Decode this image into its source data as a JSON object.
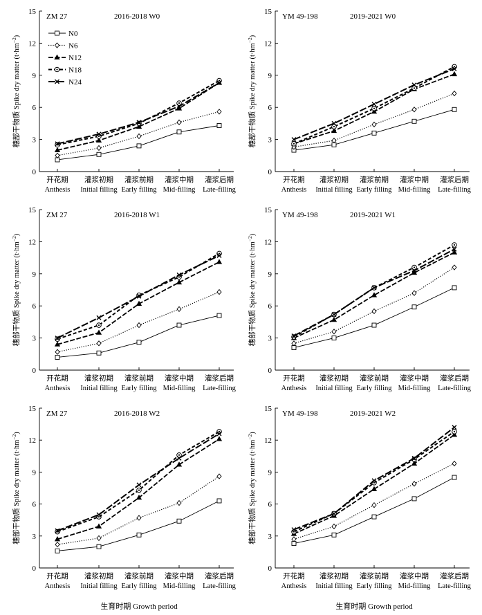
{
  "ylabel": "穗部干物质 Spike dry matter (t·hm",
  "ylabel_sup": "−2",
  "ylabel_end": ")",
  "xlabel": "生育时期 Growth period",
  "categories_cn": [
    "开花期",
    "灌浆初期",
    "灌浆前期",
    "灌浆中期",
    "灌浆后期"
  ],
  "categories_en": [
    "Anthesis",
    "Initial filling",
    "Early filling",
    "Mid-filling",
    "Late-filling"
  ],
  "legend": {
    "entries": [
      "N0",
      "N6",
      "N12",
      "N18",
      "N24"
    ],
    "placement": "top-left, first panel"
  },
  "chart_data": [
    {
      "type": "line",
      "panel": "ZM 27 2016-2018 W0",
      "variety": "ZM 27",
      "period": "2016-2018",
      "water": "W0",
      "ylim": [
        0,
        15
      ],
      "yticks": [
        0,
        3,
        6,
        9,
        12,
        15
      ],
      "series": [
        {
          "name": "N0",
          "values": [
            1.1,
            1.6,
            2.4,
            3.7,
            4.3
          ]
        },
        {
          "name": "N6",
          "values": [
            1.5,
            2.2,
            3.3,
            4.6,
            5.6
          ]
        },
        {
          "name": "N12",
          "values": [
            2.0,
            2.9,
            4.2,
            5.9,
            8.3
          ]
        },
        {
          "name": "N18",
          "values": [
            2.5,
            3.3,
            4.5,
            6.4,
            8.5
          ]
        },
        {
          "name": "N24",
          "values": [
            2.6,
            3.5,
            4.6,
            6.1,
            8.3
          ]
        }
      ]
    },
    {
      "type": "line",
      "panel": "YM 49-198 2019-2021 W0",
      "variety": "YM 49-198",
      "period": "2019-2021",
      "water": "W0",
      "ylim": [
        0,
        15
      ],
      "yticks": [
        0,
        3,
        6,
        9,
        12,
        15
      ],
      "series": [
        {
          "name": "N0",
          "values": [
            2.0,
            2.5,
            3.6,
            4.7,
            5.8
          ]
        },
        {
          "name": "N6",
          "values": [
            2.3,
            2.9,
            4.4,
            5.8,
            7.3
          ]
        },
        {
          "name": "N12",
          "values": [
            2.6,
            3.8,
            5.6,
            7.7,
            9.1
          ]
        },
        {
          "name": "N18",
          "values": [
            2.6,
            4.2,
            5.9,
            7.8,
            9.8
          ]
        },
        {
          "name": "N24",
          "values": [
            3.0,
            4.5,
            6.3,
            8.1,
            9.6
          ]
        }
      ]
    },
    {
      "type": "line",
      "panel": "ZM 27 2016-2018 W1",
      "variety": "ZM 27",
      "period": "2016-2018",
      "water": "W1",
      "ylim": [
        0,
        15
      ],
      "yticks": [
        0,
        3,
        6,
        9,
        12,
        15
      ],
      "series": [
        {
          "name": "N0",
          "values": [
            1.2,
            1.6,
            2.6,
            4.2,
            5.1
          ]
        },
        {
          "name": "N6",
          "values": [
            1.7,
            2.5,
            4.2,
            5.7,
            7.3
          ]
        },
        {
          "name": "N12",
          "values": [
            2.4,
            3.5,
            6.2,
            8.2,
            10.1
          ]
        },
        {
          "name": "N18",
          "values": [
            2.9,
            4.2,
            7.0,
            8.7,
            10.9
          ]
        },
        {
          "name": "N24",
          "values": [
            3.0,
            4.9,
            6.9,
            8.9,
            10.7
          ]
        }
      ]
    },
    {
      "type": "line",
      "panel": "YM 49-198 2019-2021 W1",
      "variety": "YM 49-198",
      "period": "2019-2021",
      "water": "W1",
      "ylim": [
        0,
        15
      ],
      "yticks": [
        0,
        3,
        6,
        9,
        12,
        15
      ],
      "series": [
        {
          "name": "N0",
          "values": [
            2.1,
            3.0,
            4.2,
            5.9,
            7.7
          ]
        },
        {
          "name": "N6",
          "values": [
            2.5,
            3.6,
            5.5,
            7.2,
            9.6
          ]
        },
        {
          "name": "N12",
          "values": [
            3.0,
            4.7,
            7.0,
            9.1,
            11.0
          ]
        },
        {
          "name": "N18",
          "values": [
            3.1,
            5.2,
            7.7,
            9.6,
            11.7
          ]
        },
        {
          "name": "N24",
          "values": [
            3.2,
            5.2,
            7.7,
            9.3,
            11.3
          ]
        }
      ]
    },
    {
      "type": "line",
      "panel": "ZM 27 2016-2018 W2",
      "variety": "ZM 27",
      "period": "2016-2018",
      "water": "W2",
      "ylim": [
        0,
        15
      ],
      "yticks": [
        0,
        3,
        6,
        9,
        12,
        15
      ],
      "series": [
        {
          "name": "N0",
          "values": [
            1.6,
            2.0,
            3.1,
            4.4,
            6.3
          ]
        },
        {
          "name": "N6",
          "values": [
            2.2,
            2.8,
            4.7,
            6.1,
            8.6
          ]
        },
        {
          "name": "N12",
          "values": [
            2.7,
            3.9,
            6.6,
            9.7,
            12.1
          ]
        },
        {
          "name": "N18",
          "values": [
            3.4,
            4.8,
            7.3,
            10.6,
            12.8
          ]
        },
        {
          "name": "N24",
          "values": [
            3.5,
            5.0,
            7.8,
            10.3,
            12.6
          ]
        }
      ]
    },
    {
      "type": "line",
      "panel": "YM 49-198 2019-2021 W2",
      "variety": "YM 49-198",
      "period": "2019-2021",
      "water": "W2",
      "ylim": [
        0,
        15
      ],
      "yticks": [
        0,
        3,
        6,
        9,
        12,
        15
      ],
      "series": [
        {
          "name": "N0",
          "values": [
            2.3,
            3.1,
            4.8,
            6.5,
            8.5
          ]
        },
        {
          "name": "N6",
          "values": [
            2.7,
            3.9,
            5.9,
            7.9,
            9.8
          ]
        },
        {
          "name": "N12",
          "values": [
            3.2,
            4.9,
            7.4,
            9.8,
            12.5
          ]
        },
        {
          "name": "N18",
          "values": [
            3.4,
            5.1,
            8.0,
            10.2,
            12.8
          ]
        },
        {
          "name": "N24",
          "values": [
            3.6,
            5.1,
            8.2,
            10.3,
            13.2
          ]
        }
      ]
    }
  ]
}
